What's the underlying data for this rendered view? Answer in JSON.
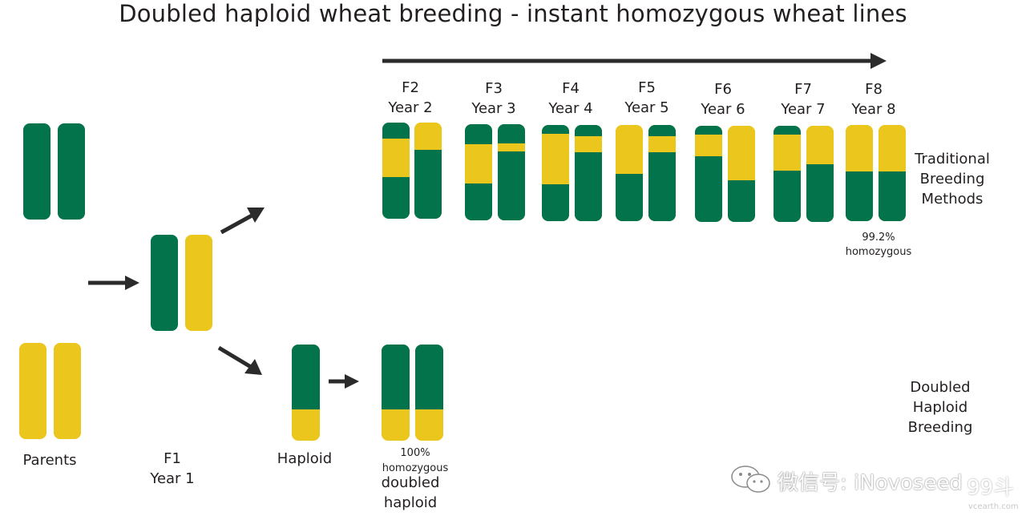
{
  "title": "Doubled haploid wheat breeding - instant homozygous wheat lines",
  "colors": {
    "green": "#02734a",
    "yellow": "#ebc61c",
    "arrow": "#2b2b2b"
  },
  "parents": {
    "label": "Parents"
  },
  "f1": {
    "line1": "F1",
    "line2": "Year 1"
  },
  "haploid": {
    "label": "Haploid"
  },
  "doubled": {
    "pct": "100%",
    "homozygous": "homozygous",
    "line1": "doubled",
    "line2": "haploid"
  },
  "generations": [
    {
      "gen": "F2",
      "year": "Year 2"
    },
    {
      "gen": "F3",
      "year": "Year 3"
    },
    {
      "gen": "F4",
      "year": "Year 4"
    },
    {
      "gen": "F5",
      "year": "Year 5"
    },
    {
      "gen": "F6",
      "year": "Year 6"
    },
    {
      "gen": "F7",
      "year": "Year 7"
    },
    {
      "gen": "F8",
      "year": "Year 8"
    }
  ],
  "traditional": {
    "line1": "Traditional",
    "line2": "Breeding",
    "line3": "Methods",
    "pct": "99.2%",
    "homozygous": "homozygous"
  },
  "dh_breeding": {
    "line1": "Doubled",
    "line2": "Haploid",
    "line3": "Breeding"
  },
  "watermark": {
    "text": "微信号: iNovoseed",
    "site": "vcearth.com",
    "logo": "99斗",
    "icon": "wechat-icon"
  }
}
